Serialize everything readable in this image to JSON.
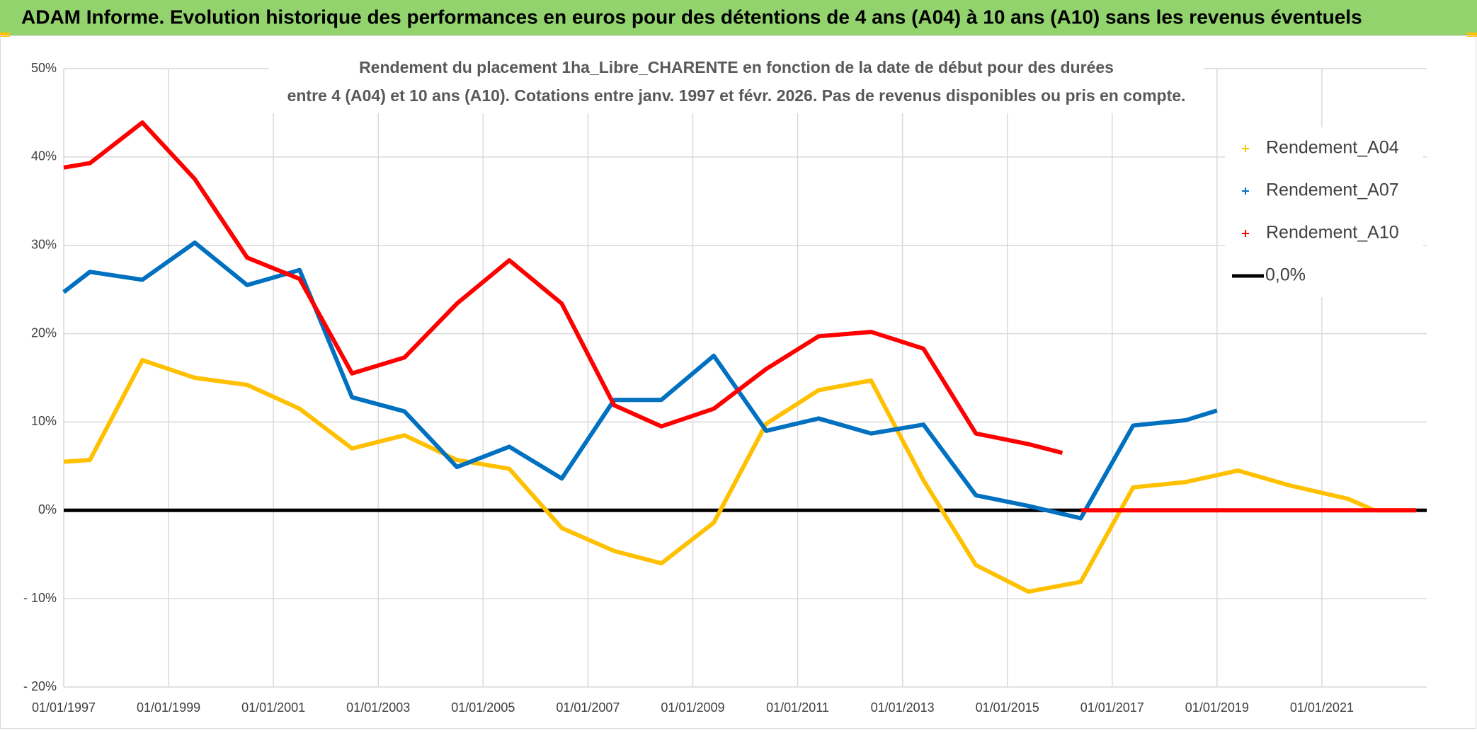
{
  "chart_data": {
    "type": "line",
    "title": "ADAM Informe. Evolution historique des performances en euros pour des détentions de 4 ans (A04) à 10 ans (A10) sans les revenus éventuels",
    "subtitle": [
      "Rendement du placement 1ha_Libre_CHARENTE en fonction de la date de début pour des durées",
      "entre 4 (A04) et 10 ans (A10). Cotations entre janv. 1997 et févr. 2026. Pas de revenus disponibles ou pris en compte."
    ],
    "xlim": [
      1997,
      2023
    ],
    "xticks": [
      {
        "value": 1997,
        "label": "01/01/1997"
      },
      {
        "value": 1999,
        "label": "01/01/1999"
      },
      {
        "value": 2001,
        "label": "01/01/2001"
      },
      {
        "value": 2003,
        "label": "01/01/2003"
      },
      {
        "value": 2005,
        "label": "01/01/2005"
      },
      {
        "value": 2007,
        "label": "01/01/2007"
      },
      {
        "value": 2009,
        "label": "01/01/2009"
      },
      {
        "value": 2011,
        "label": "01/01/2011"
      },
      {
        "value": 2013,
        "label": "01/01/2013"
      },
      {
        "value": 2015,
        "label": "01/01/2015"
      },
      {
        "value": 2017,
        "label": "01/01/2017"
      },
      {
        "value": 2019,
        "label": "01/01/2019"
      },
      {
        "value": 2021,
        "label": "01/01/2021"
      }
    ],
    "ylim": [
      -20,
      50
    ],
    "yticks": [
      {
        "value": -20,
        "label": "- 20%"
      },
      {
        "value": -10,
        "label": "- 10%"
      },
      {
        "value": 0,
        "label": "0%"
      },
      {
        "value": 10,
        "label": "10%"
      },
      {
        "value": 20,
        "label": "20%"
      },
      {
        "value": 30,
        "label": "30%"
      },
      {
        "value": 40,
        "label": "40%"
      },
      {
        "value": 50,
        "label": "50%"
      }
    ],
    "grid": true,
    "legend": "right",
    "series": [
      {
        "name": "Rendement_A04",
        "color": "#ffc000",
        "legend_marker": "cross",
        "x": [
          1997.0,
          1997.5,
          1998.5,
          1999.5,
          2000.5,
          2001.5,
          2002.5,
          2003.5,
          2004.5,
          2005.5,
          2006.5,
          2007.5,
          2008.4,
          2009.4,
          2010.4,
          2011.4,
          2012.4,
          2013.4,
          2014.4,
          2015.4,
          2016.4,
          2017.4,
          2018.4,
          2019.4,
          2020.4,
          2021.5,
          2022.0,
          2022.8
        ],
        "values": [
          5.5,
          5.7,
          17,
          15,
          14.2,
          11.5,
          7,
          8.5,
          5.7,
          4.7,
          -2,
          -4.6,
          -6,
          -1.4,
          9.8,
          13.6,
          14.7,
          3.4,
          -6.2,
          -9.2,
          -8.1,
          2.6,
          3.2,
          4.5,
          2.8,
          1.3,
          0,
          0
        ]
      },
      {
        "name": "Rendement_A07",
        "color": "#0070c0",
        "legend_marker": "cross",
        "x": [
          1997.0,
          1997.5,
          1998.5,
          1999.5,
          2000.5,
          2001.5,
          2002.5,
          2003.5,
          2004.5,
          2005.5,
          2006.5,
          2007.5,
          2008.4,
          2009.4,
          2010.4,
          2011.4,
          2012.4,
          2013.4,
          2014.4,
          2015.4,
          2016.4,
          2017.4,
          2018.4,
          2019.0
        ],
        "values": [
          24.7,
          27,
          26.1,
          30.3,
          25.5,
          27.2,
          12.8,
          11.2,
          4.9,
          7.2,
          3.6,
          12.5,
          12.5,
          17.5,
          9,
          10.4,
          8.7,
          9.7,
          1.7,
          0.5,
          -0.9,
          9.6,
          10.2,
          11.3
        ]
      },
      {
        "name": "Rendement_A10",
        "color": "#ff0000",
        "legend_marker": "cross",
        "x": [
          1997.0,
          1997.5,
          1998.5,
          1999.5,
          2000.5,
          2001.5,
          2002.5,
          2003.5,
          2004.5,
          2005.5,
          2006.5,
          2007.5,
          2008.4,
          2009.4,
          2010.4,
          2011.4,
          2012.4,
          2013.4,
          2014.4,
          2015.4,
          2016.05,
          2016.1,
          2016.4,
          2017.4,
          2018.4,
          2019.4,
          2020.4,
          2021.5,
          2022.8
        ],
        "values": [
          38.8,
          39.3,
          43.9,
          37.5,
          28.6,
          26.2,
          15.5,
          17.3,
          23.4,
          28.3,
          23.4,
          11.9,
          9.5,
          11.5,
          16,
          19.7,
          20.2,
          18.3,
          8.7,
          7.5,
          6.5,
          null,
          0,
          0,
          0,
          0,
          0,
          0,
          0
        ]
      },
      {
        "name": "0,0%",
        "color": "#000000",
        "legend_marker": "line",
        "x": [
          1997,
          2023
        ],
        "values": [
          0,
          0
        ]
      }
    ]
  }
}
